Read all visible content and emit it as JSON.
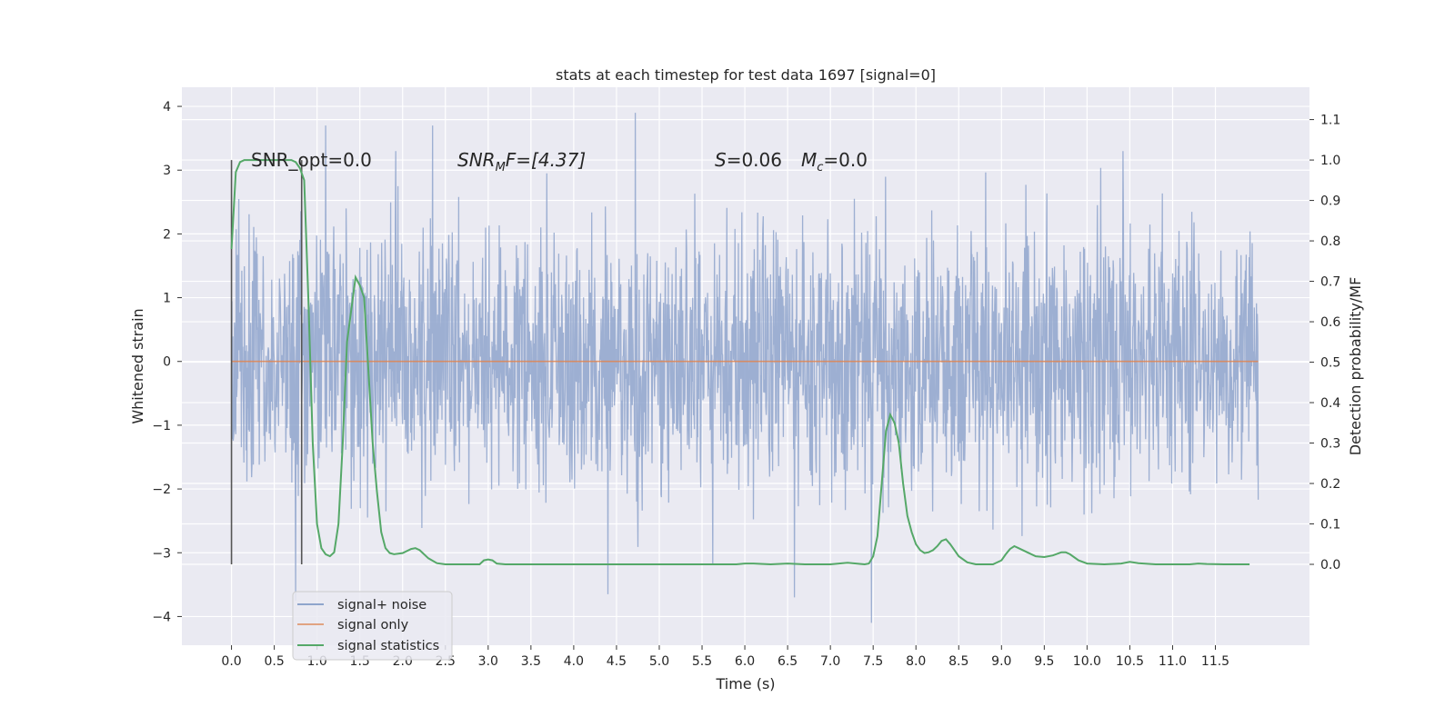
{
  "chart_data": {
    "type": "line",
    "title": "stats at each timestep for test data 1697 [signal=0]",
    "xlabel": "Time (s)",
    "ylabel": "Whitened strain",
    "ylabel_right": "Detection probability/MF",
    "xlim": [
      -0.58,
      12.6
    ],
    "ylim": [
      -4.45,
      4.3
    ],
    "ylim_right": [
      -0.2,
      1.18
    ],
    "x_ticks": [
      "0.0",
      "0.5",
      "1.0",
      "1.5",
      "2.0",
      "2.5",
      "3.0",
      "3.5",
      "4.0",
      "4.5",
      "5.0",
      "5.5",
      "6.0",
      "6.5",
      "7.0",
      "7.5",
      "8.0",
      "8.5",
      "9.0",
      "9.5",
      "10.0",
      "10.5",
      "11.0",
      "11.5"
    ],
    "y_ticks": [
      "4",
      "3",
      "2",
      "1",
      "0",
      "−1",
      "−2",
      "−3",
      "−4"
    ],
    "y_ticks_right": [
      "1.1",
      "1.0",
      "0.9",
      "0.8",
      "0.7",
      "0.6",
      "0.5",
      "0.4",
      "0.3",
      "0.2",
      "0.1",
      "0.0"
    ],
    "grid": true,
    "legend_position": "lower-left",
    "annotations": {
      "snr_opt": "SNR_opt=0.0",
      "snr_mf_sym": "SNR",
      "snr_mf_sub": "M",
      "snr_mf_rest": "F=[4.37]",
      "s_sym": "S",
      "s_rest": "=0.06",
      "mc_sym": "M",
      "mc_sub": "c",
      "mc_rest": "=0.0"
    },
    "vertical_markers_x": [
      0.0,
      0.82
    ],
    "series": [
      {
        "name": "signal+ noise",
        "color": "#8fa5cc",
        "x_range": [
          0.0,
          12.0
        ],
        "std_estimate": 1.0,
        "y_extremes_observed": {
          "max": 3.9,
          "min": -4.1
        },
        "notable_peaks": [
          {
            "x": 4.72,
            "y": 3.9
          },
          {
            "x": 7.48,
            "y": -4.1
          },
          {
            "x": 1.1,
            "y": 3.7
          },
          {
            "x": 2.35,
            "y": 3.7
          },
          {
            "x": 0.75,
            "y": -3.75
          },
          {
            "x": 6.58,
            "y": -3.7
          },
          {
            "x": 4.4,
            "y": -3.65
          },
          {
            "x": 10.42,
            "y": 3.3
          },
          {
            "x": 1.92,
            "y": 3.3
          }
        ]
      },
      {
        "name": "signal only",
        "color": "#dd8452",
        "x": [
          0.0,
          12.0
        ],
        "y": [
          0.0,
          0.0
        ]
      },
      {
        "name": "signal statistics",
        "color": "#55a868",
        "axis": "right",
        "x": [
          0.0,
          0.05,
          0.1,
          0.15,
          0.2,
          0.3,
          0.4,
          0.5,
          0.6,
          0.7,
          0.75,
          0.8,
          0.85,
          0.9,
          0.95,
          1.0,
          1.05,
          1.1,
          1.15,
          1.2,
          1.25,
          1.3,
          1.35,
          1.4,
          1.45,
          1.5,
          1.55,
          1.6,
          1.65,
          1.7,
          1.75,
          1.8,
          1.85,
          1.9,
          2.0,
          2.1,
          2.15,
          2.2,
          2.3,
          2.4,
          2.5,
          2.7,
          2.9,
          2.95,
          3.0,
          3.05,
          3.1,
          3.2,
          3.5,
          4.0,
          5.0,
          5.5,
          5.9,
          6.0,
          6.1,
          6.3,
          6.5,
          6.7,
          7.0,
          7.1,
          7.2,
          7.4,
          7.45,
          7.5,
          7.55,
          7.6,
          7.65,
          7.7,
          7.75,
          7.8,
          7.85,
          7.9,
          7.95,
          8.0,
          8.05,
          8.1,
          8.15,
          8.2,
          8.25,
          8.3,
          8.35,
          8.4,
          8.45,
          8.5,
          8.6,
          8.7,
          8.9,
          9.0,
          9.05,
          9.1,
          9.15,
          9.2,
          9.3,
          9.4,
          9.5,
          9.6,
          9.7,
          9.75,
          9.8,
          9.9,
          10.0,
          10.2,
          10.4,
          10.5,
          10.6,
          10.8,
          11.0,
          11.2,
          11.3,
          11.4,
          11.6,
          11.8,
          11.9
        ],
        "y": [
          0.78,
          0.97,
          0.995,
          1.0,
          1.0,
          1.0,
          1.0,
          1.0,
          1.0,
          1.0,
          0.995,
          0.98,
          0.95,
          0.65,
          0.3,
          0.1,
          0.04,
          0.025,
          0.02,
          0.03,
          0.1,
          0.3,
          0.55,
          0.63,
          0.71,
          0.69,
          0.66,
          0.48,
          0.3,
          0.18,
          0.08,
          0.04,
          0.028,
          0.025,
          0.028,
          0.038,
          0.04,
          0.035,
          0.015,
          0.003,
          0.0,
          0.0,
          0.0,
          0.01,
          0.012,
          0.01,
          0.002,
          0.0,
          0.0,
          0.0,
          0.0,
          0.0,
          0.0,
          0.002,
          0.002,
          0.0,
          0.002,
          0.0,
          0.0,
          0.002,
          0.004,
          0.0,
          0.002,
          0.02,
          0.07,
          0.2,
          0.33,
          0.37,
          0.35,
          0.3,
          0.2,
          0.12,
          0.08,
          0.05,
          0.035,
          0.028,
          0.03,
          0.035,
          0.045,
          0.058,
          0.062,
          0.05,
          0.035,
          0.02,
          0.005,
          0.0,
          0.0,
          0.01,
          0.025,
          0.038,
          0.045,
          0.04,
          0.03,
          0.02,
          0.018,
          0.022,
          0.03,
          0.03,
          0.025,
          0.01,
          0.002,
          0.0,
          0.002,
          0.006,
          0.003,
          0.0,
          0.0,
          0.0,
          0.002,
          0.001,
          0.0,
          0.0,
          0.0
        ]
      }
    ]
  }
}
